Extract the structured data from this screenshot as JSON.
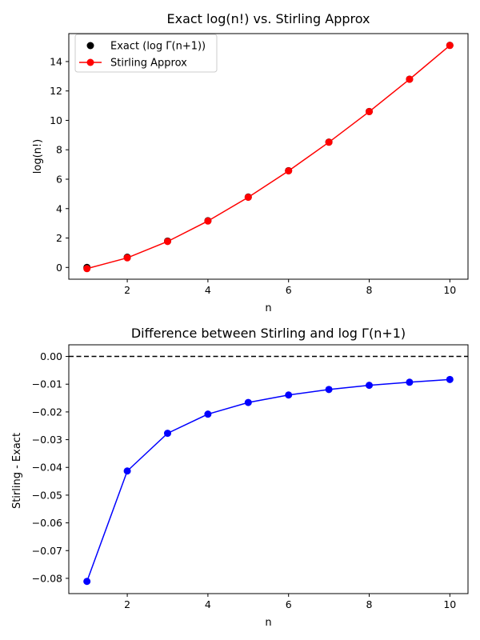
{
  "chart_data": [
    {
      "type": "line",
      "title": "Exact log(n!) vs. Stirling Approx",
      "xlabel": "n",
      "ylabel": "log(n!)",
      "xlim": [
        0.55,
        10.45
      ],
      "ylim": [
        -0.8,
        15.9
      ],
      "xticks": [
        2,
        4,
        6,
        8,
        10
      ],
      "yticks": [
        0,
        2,
        4,
        6,
        8,
        10,
        12,
        14
      ],
      "grid": false,
      "legend": "top-left",
      "x": [
        1,
        2,
        3,
        4,
        5,
        6,
        7,
        8,
        9,
        10
      ],
      "series": [
        {
          "name": "Exact (log Γ(n+1))",
          "style": "scatter",
          "color": "#000000",
          "values": [
            0,
            0.693,
            1.792,
            3.178,
            4.787,
            6.579,
            8.525,
            10.605,
            12.802,
            15.104
          ]
        },
        {
          "name": "Stirling Approx",
          "style": "line-marker",
          "color": "#ff0000",
          "values": [
            -0.081,
            0.652,
            1.764,
            3.157,
            4.771,
            6.565,
            8.513,
            10.594,
            12.793,
            15.096
          ]
        }
      ]
    },
    {
      "type": "line",
      "title": "Difference between Stirling and log Γ(n+1)",
      "xlabel": "n",
      "ylabel": "Stirling - Exact",
      "xlim": [
        0.55,
        10.45
      ],
      "ylim": [
        -0.0855,
        0.0042
      ],
      "xticks": [
        2,
        4,
        6,
        8,
        10
      ],
      "yticks": [
        0.0,
        -0.01,
        -0.02,
        -0.03,
        -0.04,
        -0.05,
        -0.06,
        -0.07,
        -0.08
      ],
      "grid": false,
      "reference_line": {
        "y": 0,
        "style": "dashed",
        "color": "#000000"
      },
      "x": [
        1,
        2,
        3,
        4,
        5,
        6,
        7,
        8,
        9,
        10
      ],
      "series": [
        {
          "style": "line-marker",
          "color": "#0000ff",
          "values": [
            -0.0811,
            -0.0413,
            -0.0277,
            -0.0208,
            -0.0166,
            -0.0139,
            -0.0119,
            -0.0104,
            -0.0093,
            -0.0083
          ]
        }
      ]
    }
  ]
}
